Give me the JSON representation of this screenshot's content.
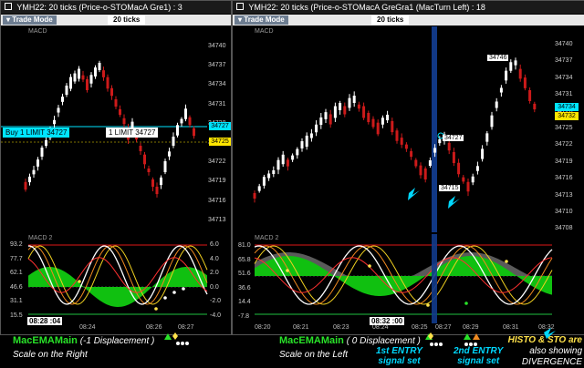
{
  "left": {
    "title": "YMH22: 20 ticks (Price-o-STOMacA Gre1) : 3",
    "trade_mode": "Trade Mode",
    "ticks": "20 ticks",
    "panel1": "MACD",
    "panel2": "MACD 2",
    "price_labels": [
      "34740",
      "34737",
      "34734",
      "34731",
      "34728",
      "34725",
      "34722",
      "34719",
      "34716",
      "34713"
    ],
    "osc_left": [
      "93.2",
      "77.7",
      "62.1",
      "46.6",
      "31.1",
      "15.5"
    ],
    "osc_right": [
      "6.0",
      "4.0",
      "2.0",
      "0.0",
      "-2.0",
      "-4.0"
    ],
    "time_labels": [
      "08:24",
      "08:26",
      "08:27"
    ],
    "cursor_time": "08:28 :04",
    "order_buy": "Buy 1 LIMIT 34727",
    "order_limit": "1 LIMIT 34727",
    "price_tag_cyan": "34727",
    "price_tag_yellow": "34725"
  },
  "right": {
    "title": "YMH22: 20 ticks (Price-o-STOMacA GreGra1 (MacTurn Left) : 18",
    "trade_mode": "Trade Mode",
    "ticks": "20 ticks",
    "panel1": "MACD",
    "panel2": "MACD 2",
    "price_labels": [
      "34740",
      "34737",
      "34734",
      "34731",
      "34728",
      "34725",
      "34722",
      "34719",
      "34716",
      "34713",
      "34710",
      "34708"
    ],
    "osc_left": [
      "81.0",
      "65.8",
      "51.6",
      "36.6",
      "14.4",
      "-7.8"
    ],
    "time_labels": [
      "08:20",
      "08:21",
      "08:23",
      "08:24",
      "08:25",
      "08:27",
      "08:29",
      "08:31",
      "08:32"
    ],
    "cursor_time": "08:32 :00",
    "annotation_high": "34746",
    "annotation_mid": "34727",
    "annotation_low": "34715",
    "price_tag_cyan": "34734",
    "price_tag_yellow": "34732"
  },
  "captions": {
    "left_main": "MacEMAMain",
    "left_detail": "(-1 Displacement )",
    "left_sub": "Scale on the Right",
    "right_main": "MacEMAMain",
    "right_detail": "( 0 Displacement )",
    "right_sub": "Scale on the Left",
    "entry1_a": "1st ENTRY",
    "entry1_b": "signal set",
    "entry2_a": "2nd ENTRY",
    "entry2_b": "signal set",
    "histo_a": "HISTO & STO are",
    "histo_b": "also showing",
    "histo_c": "DIVERGENCE"
  },
  "colors": {
    "bg": "#000000",
    "up": "#ffffff",
    "down": "#cc1a1a",
    "green_fill": "#10c010",
    "gray_fill": "#707070",
    "stoch_yellow": "#f0d020",
    "stoch_orange": "#f08a20",
    "cyan": "#00e5ff",
    "caption_green": "#29e229",
    "caption_cyan": "#00d8ff",
    "caption_yellow": "#ffe24a"
  }
}
